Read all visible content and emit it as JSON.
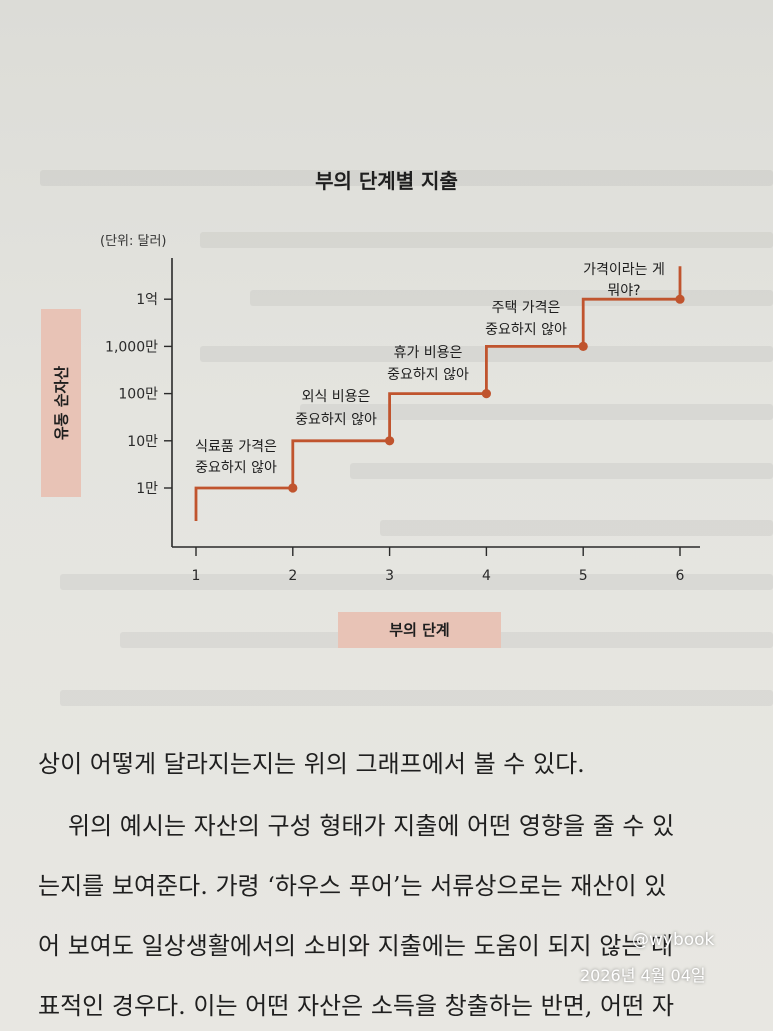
{
  "chart_data": {
    "type": "line",
    "title": "부의 단계별 지출",
    "unit_note": "(단위: 달러)",
    "xlabel": "부의 단계",
    "ylabel": "유동 순자산",
    "x_ticks": [
      "1",
      "2",
      "3",
      "4",
      "5",
      "6"
    ],
    "y_ticks": [
      "1만",
      "10만",
      "100만",
      "1,000만",
      "1억"
    ],
    "y_scale": "log",
    "grid": false,
    "series": [
      {
        "step_points": [
          {
            "x": 1,
            "y": 2000
          },
          {
            "x": 1,
            "y": 10000
          },
          {
            "x": 2,
            "y": 10000
          },
          {
            "x": 2,
            "y": 100000
          },
          {
            "x": 3,
            "y": 100000
          },
          {
            "x": 3,
            "y": 1000000
          },
          {
            "x": 4,
            "y": 1000000
          },
          {
            "x": 4,
            "y": 10000000
          },
          {
            "x": 5,
            "y": 10000000
          },
          {
            "x": 5,
            "y": 100000000
          },
          {
            "x": 6,
            "y": 100000000
          },
          {
            "x": 6,
            "y": 500000000
          }
        ],
        "markers": [
          {
            "x": 2,
            "y": 10000
          },
          {
            "x": 3,
            "y": 100000
          },
          {
            "x": 4,
            "y": 1000000
          },
          {
            "x": 5,
            "y": 10000000
          },
          {
            "x": 6,
            "y": 100000000
          }
        ]
      }
    ],
    "annotations": [
      {
        "lines": [
          "식료품 가격은",
          "중요하지 않아"
        ]
      },
      {
        "lines": [
          "외식 비용은",
          "중요하지 않아"
        ]
      },
      {
        "lines": [
          "휴가 비용은",
          "중요하지 않아"
        ]
      },
      {
        "lines": [
          "주택 가격은",
          "중요하지 않아"
        ]
      },
      {
        "lines": [
          "가격이라는 게",
          "뭐야?"
        ]
      }
    ],
    "line_color": "#c0542e"
  },
  "body": {
    "line1": "상이 어떻게 달라지는지는 위의 그래프에서 볼 수 있다.",
    "line2": "위의 예시는 자산의 구성 형태가 지출에 어떤 영향을 줄 수 있",
    "line3": "는지를 보여준다. 가령 ‘하우스 푸어’는 서류상으로는 재산이 있",
    "line4": "어 보여도 일상생활에서의 소비와 지출에는 도움이 되지 않는 대",
    "line5": "표적인 경우다. 이는 어떤 자산은 소득을 창출하는 반면, 어떤 자"
  },
  "overlay": {
    "watermark": "@wybook",
    "date": "2026년 4월 04일"
  }
}
